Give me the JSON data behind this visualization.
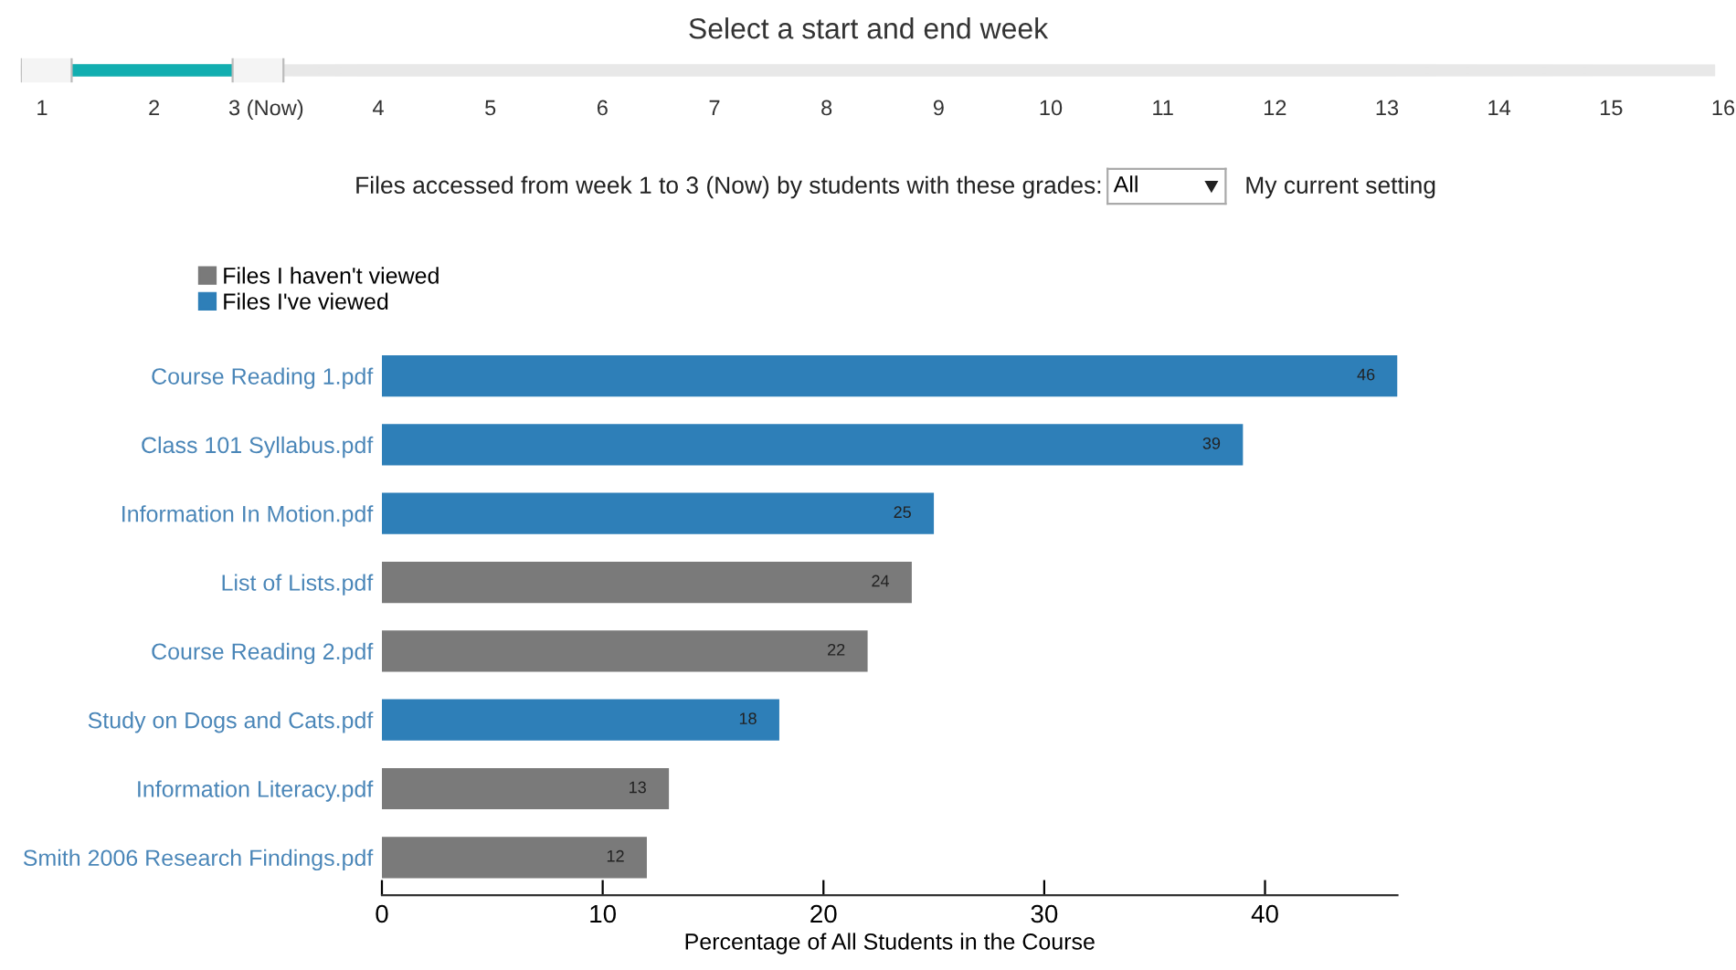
{
  "chart_data": {
    "type": "bar",
    "orientation": "horizontal",
    "title": "Select a start and end week",
    "subtitle": "Files accessed from week 1 to 3 (Now) by students with these grades:",
    "categories": [
      "Course Reading 1.pdf",
      "Class 101 Syllabus.pdf",
      "Information In Motion.pdf",
      "List of Lists.pdf",
      "Course Reading 2.pdf",
      "Study on Dogs and Cats.pdf",
      "Information Literacy.pdf",
      "Smith 2006 Research Findings.pdf"
    ],
    "series": [
      {
        "name": "Files I haven't viewed",
        "color": "#7a7a7a",
        "values": [
          null,
          null,
          null,
          24,
          22,
          null,
          13,
          12
        ]
      },
      {
        "name": "Files I've viewed",
        "color": "#2e7fb8",
        "values": [
          46,
          39,
          25,
          null,
          null,
          18,
          null,
          null
        ]
      }
    ],
    "xlim": [
      0,
      46
    ],
    "xticks": [
      0,
      10,
      20,
      30,
      40
    ],
    "xlabel": "Percentage of All Students in the Course",
    "data_labels": true,
    "legend": "top left",
    "grid": false,
    "annotations": [
      "1",
      "2",
      "3 (Now)",
      "4",
      "5",
      "6",
      "7",
      "8",
      "9",
      "10",
      "11",
      "12",
      "13",
      "14",
      "15",
      "16",
      "All",
      "My current setting"
    ]
  }
}
